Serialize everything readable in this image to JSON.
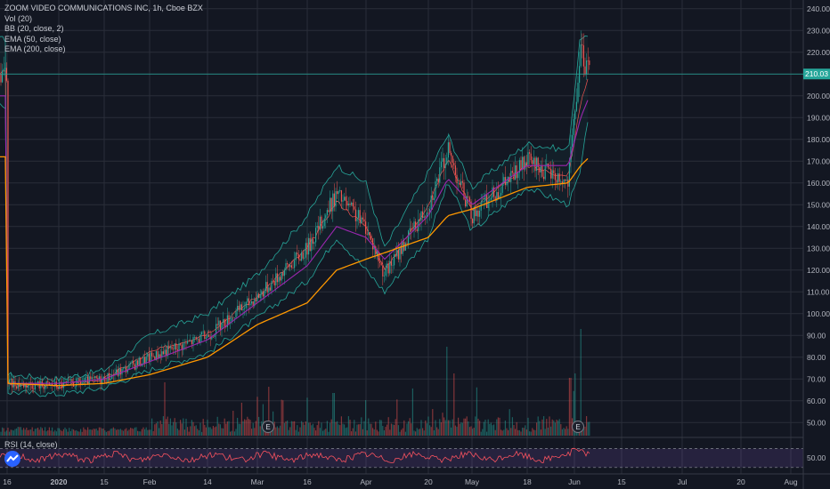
{
  "legend": {
    "symbol": "ZOOM VIDEO COMMUNICATIONS INC, 1h, Cboe BZX",
    "vol": "Vol (20)",
    "bb": "BB (20, close, 2)",
    "ema50": "EMA (50, close)",
    "ema200": "EMA (200, close)"
  },
  "rsi": {
    "label": "RSI (14, close)",
    "value_label": "50.00",
    "upper": 70,
    "lower": 30,
    "color": "#f7525f"
  },
  "price_tag": {
    "value": "210.03",
    "color": "#26a69a"
  },
  "event_marker": "E",
  "colors": {
    "background": "#131722",
    "grid": "#2a2e39",
    "up": "#26a69a",
    "down": "#ef5350",
    "bb": "#26a69a",
    "ema50": "#9c27b0",
    "ema200": "#ff9800"
  },
  "chart_data": {
    "type": "candlestick",
    "title": "ZOOM VIDEO COMMUNICATIONS INC, 1h, Cboe BZX",
    "y_axis_ticks": [
      50,
      60,
      70,
      80,
      90,
      100,
      110,
      120,
      130,
      140,
      150,
      160,
      170,
      180,
      190,
      200,
      210,
      220,
      230,
      240
    ],
    "y_axis_labels": [
      "50.00",
      "60.00",
      "70.00",
      "80.00",
      "90.00",
      "100.00",
      "110.00",
      "120.00",
      "130.00",
      "140.00",
      "150.00",
      "160.00",
      "170.00",
      "180.00",
      "190.00",
      "200.00",
      "210.00",
      "220.00",
      "230.00",
      "240.00"
    ],
    "ylim": [
      44,
      244
    ],
    "x_axis_labels": [
      "16",
      "2020",
      "15",
      "Feb",
      "14",
      "Mar",
      "16",
      "Apr",
      "20",
      "May",
      "18",
      "Jun",
      "15",
      "Jul",
      "20",
      "Aug"
    ],
    "last_price": 210.03,
    "price_path": {
      "dates": [
        "Dec 16",
        "Jan 1",
        "Jan 15",
        "Feb 1",
        "Feb 14",
        "Mar 1",
        "Mar 16",
        "Mar 23",
        "Apr 1",
        "Apr 8",
        "Apr 20",
        "Apr 24",
        "May 1",
        "May 18",
        "Jun 1",
        "Jun 3",
        "Jun 5"
      ],
      "close": [
        68,
        67,
        70,
        80,
        90,
        108,
        130,
        155,
        140,
        118,
        150,
        175,
        145,
        170,
        160,
        220,
        210
      ]
    },
    "ema50": [
      68,
      68,
      70,
      78,
      88,
      105,
      122,
      140,
      135,
      125,
      145,
      162,
      150,
      168,
      168,
      190,
      200
    ],
    "ema200": [
      68,
      67,
      68,
      72,
      80,
      95,
      105,
      120,
      125,
      128,
      135,
      145,
      148,
      158,
      160,
      168,
      172
    ],
    "bb_upper": [
      72,
      70,
      74,
      90,
      100,
      118,
      145,
      168,
      160,
      130,
      165,
      182,
      158,
      178,
      175,
      228,
      226
    ],
    "bb_lower": [
      64,
      63,
      66,
      74,
      82,
      98,
      115,
      135,
      120,
      110,
      135,
      160,
      138,
      158,
      150,
      165,
      195
    ],
    "volume_events": [
      "E",
      "E"
    ]
  }
}
